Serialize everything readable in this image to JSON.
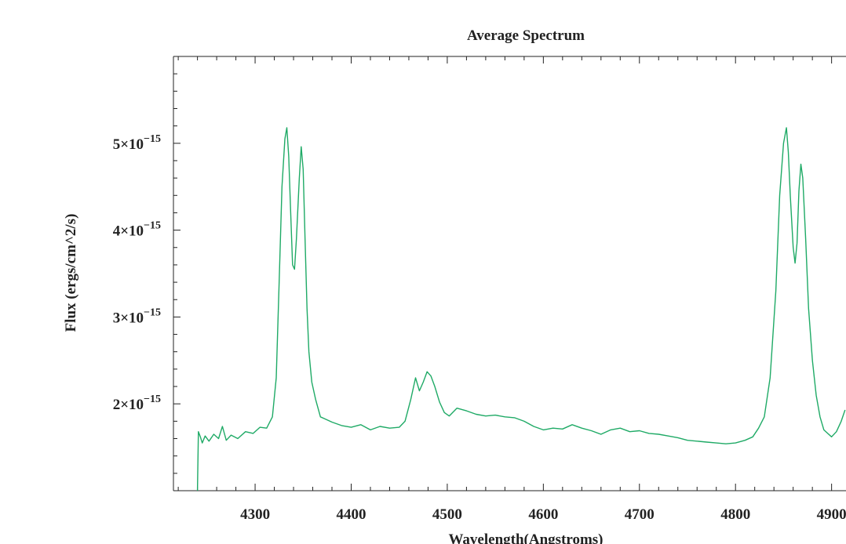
{
  "chart_data": {
    "type": "line",
    "title": "Average Spectrum",
    "xlabel": "Wavelength(Angstroms)",
    "ylabel": "Flux (ergs/cm^2/s)",
    "xlim": [
      4215,
      4915
    ],
    "ylim": [
      1e-15,
      6e-15
    ],
    "x_ticks": [
      {
        "value": 4300,
        "label": "4300"
      },
      {
        "value": 4400,
        "label": "4400"
      },
      {
        "value": 4500,
        "label": "4500"
      },
      {
        "value": 4600,
        "label": "4600"
      },
      {
        "value": 4700,
        "label": "4700"
      },
      {
        "value": 4800,
        "label": "4800"
      },
      {
        "value": 4900,
        "label": "4900"
      }
    ],
    "y_ticks": [
      {
        "value": 2e-15,
        "mantissa": "2",
        "exponent": "−15"
      },
      {
        "value": 3e-15,
        "mantissa": "3",
        "exponent": "−15"
      },
      {
        "value": 4e-15,
        "mantissa": "4",
        "exponent": "−15"
      },
      {
        "value": 5e-15,
        "mantissa": "5",
        "exponent": "−15"
      }
    ],
    "grid": false,
    "line_color": "#1faa66",
    "series": [
      {
        "x": [
          4240,
          4241,
          4243,
          4245,
          4248,
          4252,
          4257,
          4262,
          4266,
          4270,
          4275,
          4282,
          4290,
          4298,
          4305,
          4312,
          4318,
          4322,
          4325,
          4328,
          4331,
          4333,
          4335,
          4337,
          4339,
          4341,
          4343,
          4346,
          4348,
          4350,
          4352,
          4354,
          4356,
          4359,
          4363,
          4368,
          4372,
          4380,
          4390,
          4400,
          4410,
          4420,
          4430,
          4440,
          4450,
          4456,
          4462,
          4467,
          4471,
          4475,
          4479,
          4483,
          4487,
          4492,
          4497,
          4502,
          4510,
          4520,
          4530,
          4540,
          4550,
          4560,
          4570,
          4580,
          4590,
          4600,
          4610,
          4620,
          4630,
          4640,
          4650,
          4660,
          4670,
          4680,
          4690,
          4700,
          4710,
          4720,
          4730,
          4740,
          4750,
          4760,
          4770,
          4780,
          4790,
          4800,
          4810,
          4818,
          4824,
          4830,
          4836,
          4842,
          4846,
          4850,
          4853,
          4855,
          4857,
          4860,
          4862,
          4864,
          4866,
          4868,
          4870,
          4873,
          4876,
          4880,
          4884,
          4888,
          4892,
          4896,
          4900,
          4905,
          4910,
          4914
        ],
        "y": [
          1e-15,
          1.68e-15,
          1.62e-15,
          1.55e-15,
          1.63e-15,
          1.57e-15,
          1.65e-15,
          1.6e-15,
          1.74e-15,
          1.58e-15,
          1.64e-15,
          1.6e-15,
          1.68e-15,
          1.66e-15,
          1.73e-15,
          1.72e-15,
          1.85e-15,
          2.3e-15,
          3.4e-15,
          4.5e-15,
          5.05e-15,
          5.18e-15,
          4.85e-15,
          4.2e-15,
          3.6e-15,
          3.55e-15,
          3.9e-15,
          4.6e-15,
          4.96e-15,
          4.7e-15,
          3.9e-15,
          3.1e-15,
          2.6e-15,
          2.25e-15,
          2.05e-15,
          1.85e-15,
          1.83e-15,
          1.79e-15,
          1.75e-15,
          1.73e-15,
          1.76e-15,
          1.7e-15,
          1.74e-15,
          1.72e-15,
          1.73e-15,
          1.8e-15,
          2.05e-15,
          2.3e-15,
          2.15e-15,
          2.25e-15,
          2.37e-15,
          2.32e-15,
          2.2e-15,
          2.02e-15,
          1.9e-15,
          1.86e-15,
          1.95e-15,
          1.92e-15,
          1.88e-15,
          1.86e-15,
          1.87e-15,
          1.85e-15,
          1.84e-15,
          1.8e-15,
          1.74e-15,
          1.7e-15,
          1.72e-15,
          1.71e-15,
          1.76e-15,
          1.72e-15,
          1.69e-15,
          1.65e-15,
          1.7e-15,
          1.72e-15,
          1.68e-15,
          1.69e-15,
          1.66e-15,
          1.65e-15,
          1.63e-15,
          1.61e-15,
          1.58e-15,
          1.57e-15,
          1.56e-15,
          1.55e-15,
          1.54e-15,
          1.55e-15,
          1.58e-15,
          1.62e-15,
          1.72e-15,
          1.85e-15,
          2.3e-15,
          3.3e-15,
          4.4e-15,
          5e-15,
          5.18e-15,
          4.9e-15,
          4.4e-15,
          3.8e-15,
          3.62e-15,
          3.85e-15,
          4.45e-15,
          4.76e-15,
          4.6e-15,
          3.9e-15,
          3.1e-15,
          2.5e-15,
          2.1e-15,
          1.85e-15,
          1.7e-15,
          1.66e-15,
          1.62e-15,
          1.68e-15,
          1.8e-15,
          1.93e-15
        ]
      }
    ]
  }
}
